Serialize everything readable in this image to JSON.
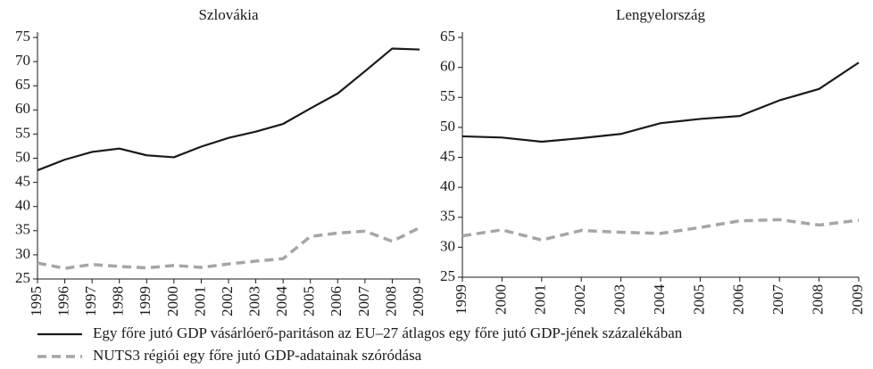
{
  "chart_data": [
    {
      "type": "line",
      "title": "Szlovákia",
      "x": [
        1995,
        1996,
        1997,
        1998,
        1999,
        2000,
        2001,
        2002,
        2003,
        2004,
        2005,
        2006,
        2007,
        2008,
        2009
      ],
      "xlim": [
        1995,
        2009
      ],
      "ylim": [
        25,
        75
      ],
      "yticks": [
        25,
        30,
        35,
        40,
        45,
        50,
        55,
        60,
        65,
        70,
        75
      ],
      "series": [
        {
          "name": "Egy főre jutó GDP vásárlóerő-paritáson az EU–27 átlagos egy főre jutó GDP-jének százalékában",
          "color": "#1a1a1a",
          "dash": "solid",
          "values": [
            47.5,
            49.7,
            51.3,
            52.0,
            50.6,
            50.2,
            52.4,
            54.2,
            55.5,
            57.1,
            60.3,
            63.4,
            68.0,
            72.7,
            72.5
          ]
        },
        {
          "name": "NUTS3 régiói egy főre jutó GDP-adatainak szóródása",
          "color": "#a6a6a6",
          "dash": "dashed",
          "values": [
            28.3,
            27.2,
            28.0,
            27.6,
            27.3,
            27.8,
            27.4,
            28.1,
            28.7,
            29.2,
            33.8,
            34.5,
            34.9,
            32.8,
            35.6
          ]
        }
      ]
    },
    {
      "type": "line",
      "title": "Lengyelország",
      "x": [
        1999,
        2000,
        2001,
        2002,
        2003,
        2004,
        2005,
        2006,
        2007,
        2008,
        2009
      ],
      "xlim": [
        1999,
        2009
      ],
      "ylim": [
        25,
        65
      ],
      "yticks": [
        25,
        30,
        35,
        40,
        45,
        50,
        55,
        60,
        65
      ],
      "series": [
        {
          "color": "#1a1a1a",
          "dash": "solid",
          "values": [
            48.5,
            48.3,
            47.6,
            48.2,
            48.9,
            50.7,
            51.4,
            51.9,
            54.5,
            56.4,
            60.8
          ]
        },
        {
          "color": "#a6a6a6",
          "dash": "dashed",
          "values": [
            31.9,
            32.9,
            31.2,
            32.8,
            32.5,
            32.3,
            33.3,
            34.4,
            34.6,
            33.7,
            34.5
          ]
        }
      ]
    }
  ]
}
